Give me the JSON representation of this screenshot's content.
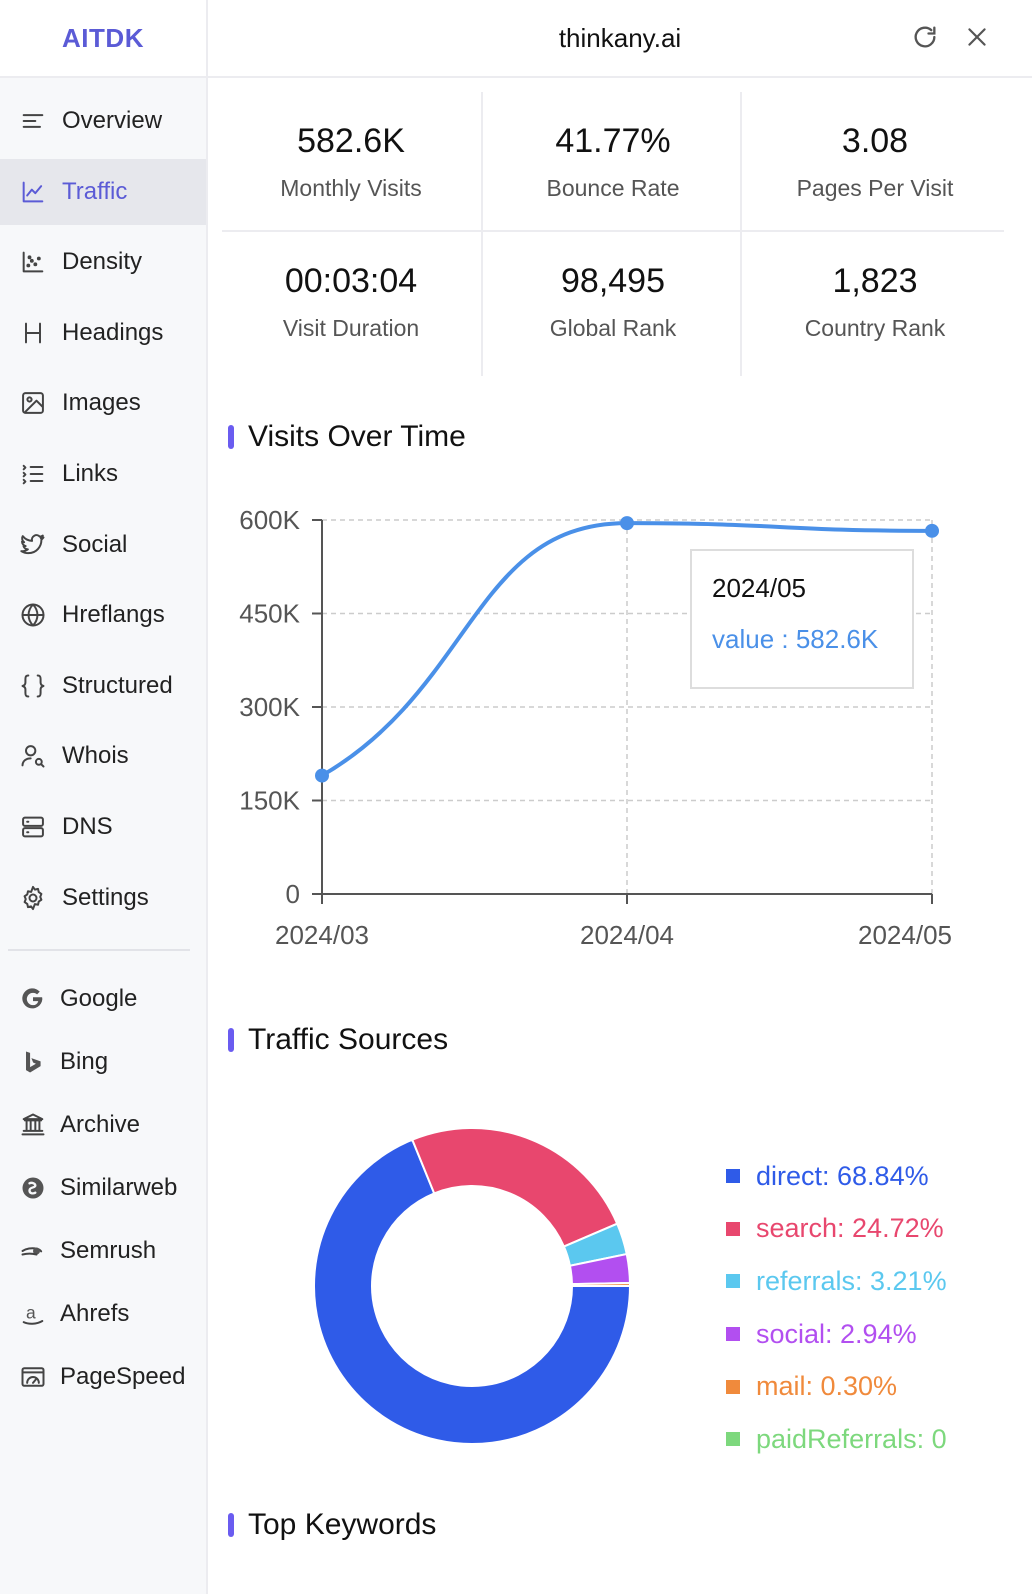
{
  "brand": "AITDK",
  "header": {
    "title": "thinkany.ai"
  },
  "nav": [
    {
      "label": "Overview",
      "icon": "overview-icon"
    },
    {
      "label": "Traffic",
      "icon": "traffic-icon",
      "active": true
    },
    {
      "label": "Density",
      "icon": "density-icon"
    },
    {
      "label": "Headings",
      "icon": "headings-icon"
    },
    {
      "label": "Images",
      "icon": "image-icon"
    },
    {
      "label": "Links",
      "icon": "links-icon"
    },
    {
      "label": "Social",
      "icon": "twitter-icon"
    },
    {
      "label": "Hreflangs",
      "icon": "globe-icon"
    },
    {
      "label": "Structured",
      "icon": "braces-icon"
    },
    {
      "label": "Whois",
      "icon": "user-search-icon"
    },
    {
      "label": "DNS",
      "icon": "server-icon"
    },
    {
      "label": "Settings",
      "icon": "gear-icon"
    }
  ],
  "tools": [
    {
      "label": "Google",
      "icon": "google-icon"
    },
    {
      "label": "Bing",
      "icon": "bing-icon"
    },
    {
      "label": "Archive",
      "icon": "archive-icon"
    },
    {
      "label": "Similarweb",
      "icon": "similarweb-icon"
    },
    {
      "label": "Semrush",
      "icon": "semrush-icon"
    },
    {
      "label": "Ahrefs",
      "icon": "ahrefs-icon"
    },
    {
      "label": "PageSpeed",
      "icon": "pagespeed-icon"
    }
  ],
  "stats": [
    {
      "value": "582.6K",
      "label": "Monthly Visits"
    },
    {
      "value": "41.77%",
      "label": "Bounce Rate"
    },
    {
      "value": "3.08",
      "label": "Pages Per Visit"
    },
    {
      "value": "00:03:04",
      "label": "Visit Duration"
    },
    {
      "value": "98,495",
      "label": "Global Rank"
    },
    {
      "value": "1,823",
      "label": "Country Rank"
    }
  ],
  "sections": {
    "visits_title": "Visits Over Time",
    "sources_title": "Traffic Sources",
    "keywords_title": "Top Keywords"
  },
  "tooltip": {
    "date": "2024/05",
    "value_text": "value : 582.6K"
  },
  "colors": {
    "accent": "#5b5bd6",
    "line": "#4a90e8",
    "direct": "#2f5be8",
    "search": "#e8476e",
    "referrals": "#5bc8ef",
    "social": "#b24ff0",
    "mail": "#f08a3c",
    "paidReferrals": "#7dd87d"
  },
  "chart_data": [
    {
      "type": "line",
      "title": "Visits Over Time",
      "categories": [
        "2024/03",
        "2024/04",
        "2024/05"
      ],
      "values": [
        190000,
        595000,
        582600
      ],
      "ylim": [
        0,
        600000
      ],
      "yticks": [
        "0",
        "150K",
        "300K",
        "450K",
        "600K"
      ],
      "ytick_values": [
        0,
        150000,
        300000,
        450000,
        600000
      ],
      "grid": true
    },
    {
      "type": "pie",
      "title": "Traffic Sources",
      "series": [
        {
          "name": "direct",
          "value": 68.84,
          "label": "direct: 68.84%"
        },
        {
          "name": "search",
          "value": 24.72,
          "label": "search: 24.72%"
        },
        {
          "name": "referrals",
          "value": 3.21,
          "label": "referrals: 3.21%"
        },
        {
          "name": "social",
          "value": 2.94,
          "label": "social: 2.94%"
        },
        {
          "name": "mail",
          "value": 0.3,
          "label": "mail: 0.30%"
        },
        {
          "name": "paidReferrals",
          "value": 0,
          "label": "paidReferrals: 0"
        }
      ]
    }
  ]
}
